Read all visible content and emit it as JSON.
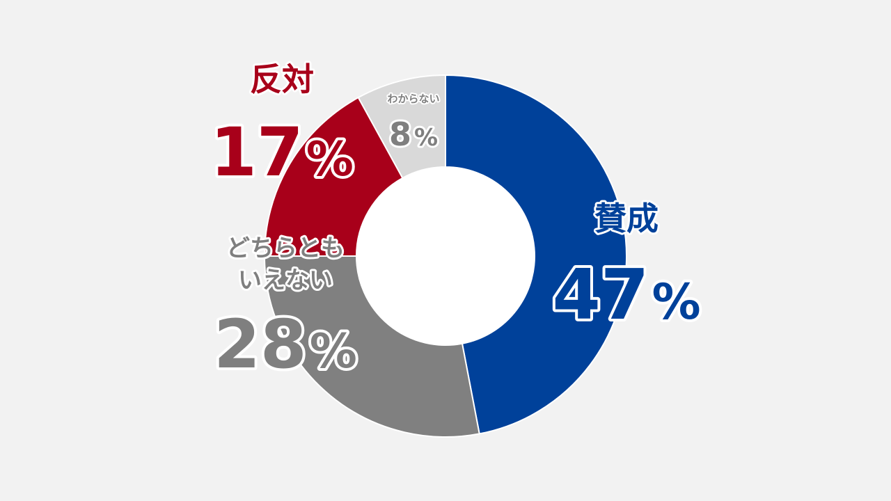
{
  "chart_data": {
    "type": "pie",
    "donut": true,
    "title": "",
    "categories": [
      "賛成",
      "反対",
      "どちらともいえない",
      "わからない"
    ],
    "series": [
      {
        "values": [
          47,
          17,
          28,
          8
        ]
      }
    ],
    "slices": [
      {
        "label": "賛成",
        "label_lines": [
          "賛成"
        ],
        "value": 47,
        "value_text": "47",
        "percent_sign": "%",
        "color": "#00419a",
        "text_color": "#00419a"
      },
      {
        "label": "どちらともいえない",
        "label_lines": [
          "どちらとも",
          "いえない"
        ],
        "value": 28,
        "value_text": "28",
        "percent_sign": "%",
        "color": "#808080",
        "text_color": "#7f7f7f"
      },
      {
        "label": "反対",
        "label_lines": [
          "反対"
        ],
        "value": 17,
        "value_text": "17",
        "percent_sign": "%",
        "color": "#a8001a",
        "text_color": "#a8001a"
      },
      {
        "label": "わからない",
        "label_lines": [
          "わからない"
        ],
        "value": 8,
        "value_text": "8",
        "percent_sign": "%",
        "color": "#d9d9d9",
        "text_color": "#7f7f7f"
      }
    ],
    "slice_order": "clockwise from top",
    "legend": "none (labels placed beside slices)",
    "background": "#f2f2f2"
  }
}
